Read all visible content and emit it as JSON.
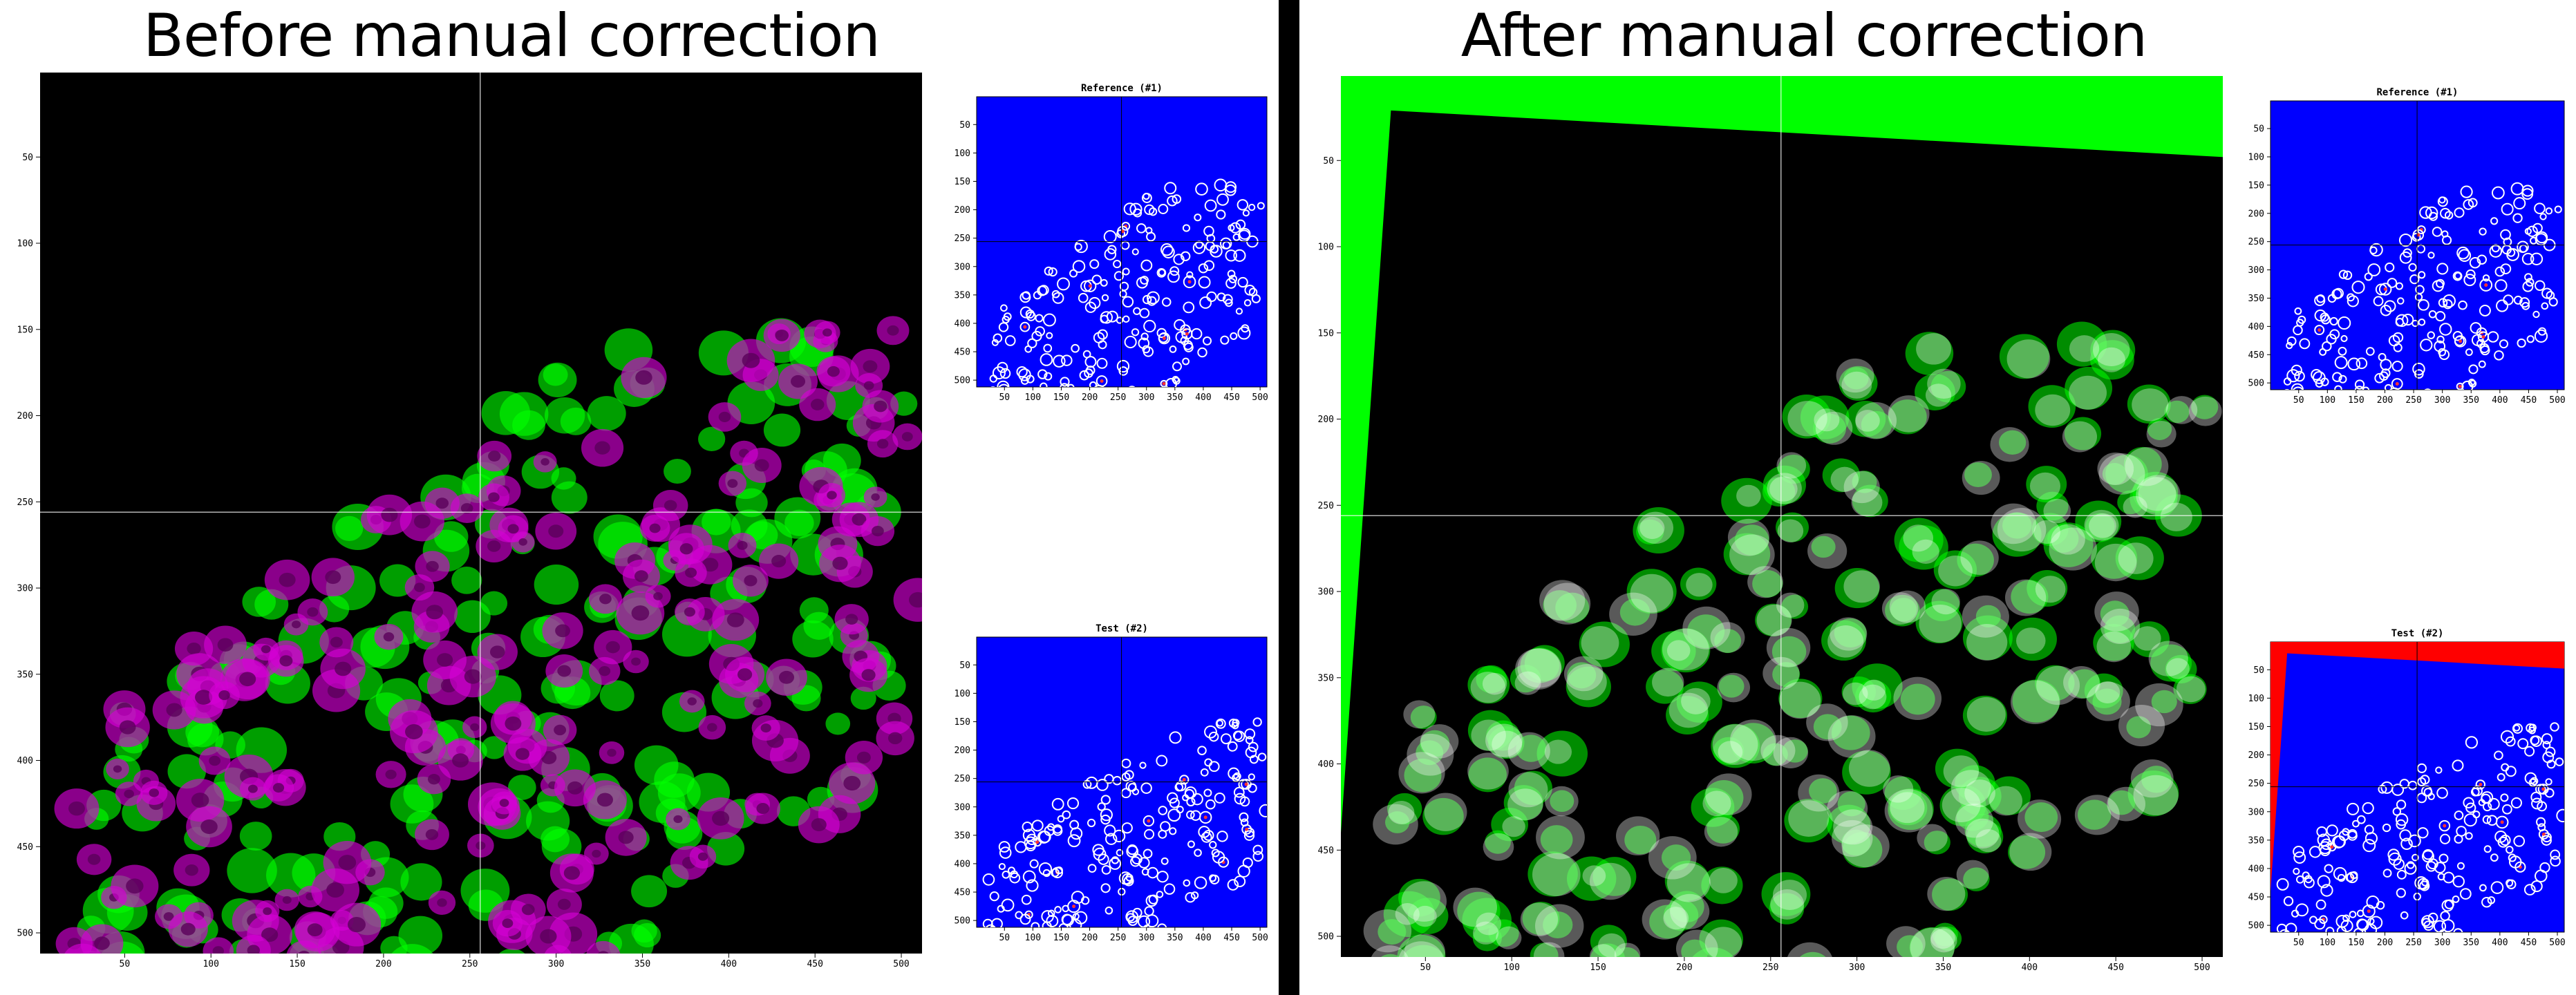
{
  "titles": {
    "before": "Before manual correction",
    "after": "After manual correction"
  },
  "panels": {
    "reference": "Reference (#1)",
    "test": "Test (#2)"
  },
  "colors": {
    "background": "#000000",
    "green_channel": "#00ff00",
    "magenta_channel": "#d400d4",
    "small_plot_bg": "#0000ff",
    "small_plot_cells": "#ffffff",
    "small_plot_hot": "#ff3333",
    "border_correction_green": "#00ff00",
    "border_correction_red": "#ff0000",
    "crosshair": "#ffffff"
  },
  "axes": {
    "ticks": [
      50,
      100,
      150,
      200,
      250,
      300,
      350,
      400,
      450,
      500
    ],
    "range": [
      1,
      512
    ],
    "crosshair": [
      256,
      256
    ]
  }
}
